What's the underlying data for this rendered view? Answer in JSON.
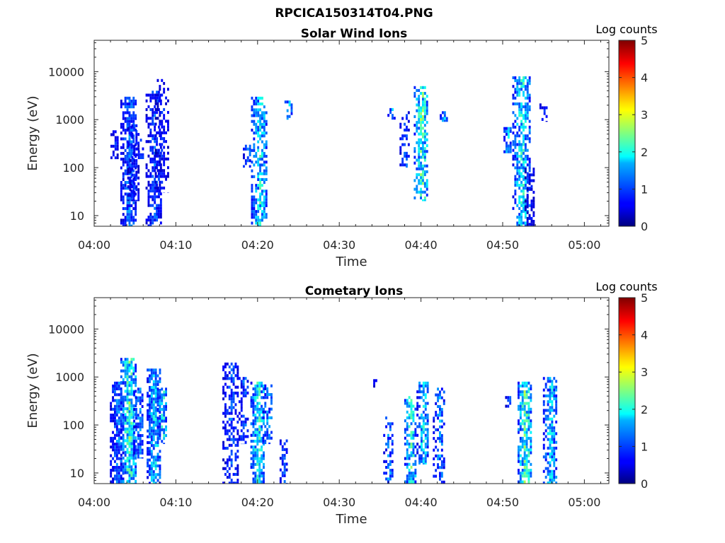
{
  "figure_title": "RPCICA150314T04.PNG",
  "chart_data": [
    {
      "type": "heatmap",
      "title": "Solar Wind Ions",
      "xlabel": "Time",
      "ylabel": "Energy (eV)",
      "y_scale": "log",
      "ylim": [
        6,
        45000
      ],
      "x_start": "04:00",
      "x_end": "05:03",
      "x_ticks": [
        "04:00",
        "04:10",
        "04:20",
        "04:30",
        "04:40",
        "04:50",
        "05:00"
      ],
      "x_tick_minutes": [
        0,
        10,
        20,
        30,
        40,
        50,
        60
      ],
      "y_ticks": [
        "10",
        "100",
        "1000",
        "10000"
      ],
      "y_tick_values": [
        10,
        100,
        1000,
        10000
      ],
      "colorbar": {
        "label": "Log counts",
        "min": 0,
        "max": 5,
        "ticks": [
          "0",
          "1",
          "2",
          "3",
          "4",
          "5"
        ]
      },
      "bursts": [
        {
          "minute": 2.5,
          "e_low": 150,
          "e_high": 600,
          "peak": 0.9,
          "density": 0.7
        },
        {
          "minute": 4.2,
          "e_low": 6,
          "e_high": 3000,
          "peak": 1.4,
          "density": 0.85
        },
        {
          "minute": 4.8,
          "e_low": 20,
          "e_high": 800,
          "peak": 1.0,
          "density": 0.6
        },
        {
          "minute": 5.6,
          "e_low": 150,
          "e_high": 400,
          "peak": 1.1,
          "density": 0.5
        },
        {
          "minute": 7.3,
          "e_low": 6,
          "e_high": 4000,
          "peak": 1.2,
          "density": 0.7
        },
        {
          "minute": 8.3,
          "e_low": 30,
          "e_high": 7000,
          "peak": 0.9,
          "density": 0.55
        },
        {
          "minute": 18.7,
          "e_low": 100,
          "e_high": 300,
          "peak": 1.5,
          "density": 0.6
        },
        {
          "minute": 20.2,
          "e_low": 6,
          "e_high": 3000,
          "peak": 2.1,
          "density": 0.75
        },
        {
          "minute": 23.8,
          "e_low": 1000,
          "e_high": 2500,
          "peak": 1.8,
          "density": 0.6
        },
        {
          "minute": 36.4,
          "e_low": 1000,
          "e_high": 2000,
          "peak": 1.6,
          "density": 0.7
        },
        {
          "minute": 38.0,
          "e_low": 100,
          "e_high": 1500,
          "peak": 1.2,
          "density": 0.5
        },
        {
          "minute": 40.0,
          "e_low": 20,
          "e_high": 5000,
          "peak": 2.6,
          "density": 0.75
        },
        {
          "minute": 42.8,
          "e_low": 900,
          "e_high": 1500,
          "peak": 1.8,
          "density": 0.6
        },
        {
          "minute": 50.6,
          "e_low": 200,
          "e_high": 700,
          "peak": 1.8,
          "density": 0.75
        },
        {
          "minute": 52.3,
          "e_low": 6,
          "e_high": 8000,
          "peak": 2.2,
          "density": 0.75
        },
        {
          "minute": 53.3,
          "e_low": 6,
          "e_high": 100,
          "peak": 0.8,
          "density": 0.55
        },
        {
          "minute": 55.0,
          "e_low": 900,
          "e_high": 2500,
          "peak": 1.0,
          "density": 0.4
        }
      ]
    },
    {
      "type": "heatmap",
      "title": "Cometary Ions",
      "xlabel": "Time",
      "ylabel": "Energy (eV)",
      "y_scale": "log",
      "ylim": [
        6,
        45000
      ],
      "x_start": "04:00",
      "x_end": "05:03",
      "x_ticks": [
        "04:00",
        "04:10",
        "04:20",
        "04:30",
        "04:40",
        "04:50",
        "05:00"
      ],
      "x_tick_minutes": [
        0,
        10,
        20,
        30,
        40,
        50,
        60
      ],
      "y_ticks": [
        "10",
        "100",
        "1000",
        "10000"
      ],
      "y_tick_values": [
        10,
        100,
        1000,
        10000
      ],
      "colorbar": {
        "label": "Log counts",
        "min": 0,
        "max": 5,
        "ticks": [
          "0",
          "1",
          "2",
          "3",
          "4",
          "5"
        ]
      },
      "bursts": [
        {
          "minute": 2.8,
          "e_low": 6,
          "e_high": 800,
          "peak": 1.4,
          "density": 0.85
        },
        {
          "minute": 4.2,
          "e_low": 6,
          "e_high": 2500,
          "peak": 2.5,
          "density": 0.9
        },
        {
          "minute": 5.4,
          "e_low": 20,
          "e_high": 600,
          "peak": 1.5,
          "density": 0.8
        },
        {
          "minute": 7.3,
          "e_low": 6,
          "e_high": 1500,
          "peak": 2.0,
          "density": 0.9
        },
        {
          "minute": 8.3,
          "e_low": 40,
          "e_high": 600,
          "peak": 2.2,
          "density": 0.8
        },
        {
          "minute": 16.7,
          "e_low": 6,
          "e_high": 2000,
          "peak": 1.2,
          "density": 0.55
        },
        {
          "minute": 18.3,
          "e_low": 40,
          "e_high": 1000,
          "peak": 1.3,
          "density": 0.5
        },
        {
          "minute": 20.0,
          "e_low": 6,
          "e_high": 800,
          "peak": 2.4,
          "density": 0.8
        },
        {
          "minute": 21.2,
          "e_low": 40,
          "e_high": 700,
          "peak": 1.7,
          "density": 0.55
        },
        {
          "minute": 23.2,
          "e_low": 6,
          "e_high": 50,
          "peak": 1.2,
          "density": 0.6
        },
        {
          "minute": 34.4,
          "e_low": 600,
          "e_high": 900,
          "peak": 0.8,
          "density": 0.5
        },
        {
          "minute": 36.0,
          "e_low": 6,
          "e_high": 150,
          "peak": 1.5,
          "density": 0.65
        },
        {
          "minute": 38.7,
          "e_low": 6,
          "e_high": 400,
          "peak": 2.3,
          "density": 0.75
        },
        {
          "minute": 40.2,
          "e_low": 15,
          "e_high": 800,
          "peak": 2.0,
          "density": 0.7
        },
        {
          "minute": 42.2,
          "e_low": 6,
          "e_high": 600,
          "peak": 1.5,
          "density": 0.55
        },
        {
          "minute": 50.8,
          "e_low": 200,
          "e_high": 400,
          "peak": 1.3,
          "density": 0.6
        },
        {
          "minute": 52.7,
          "e_low": 6,
          "e_high": 800,
          "peak": 2.7,
          "density": 0.85
        },
        {
          "minute": 55.8,
          "e_low": 6,
          "e_high": 1000,
          "peak": 2.0,
          "density": 0.75
        }
      ]
    }
  ]
}
